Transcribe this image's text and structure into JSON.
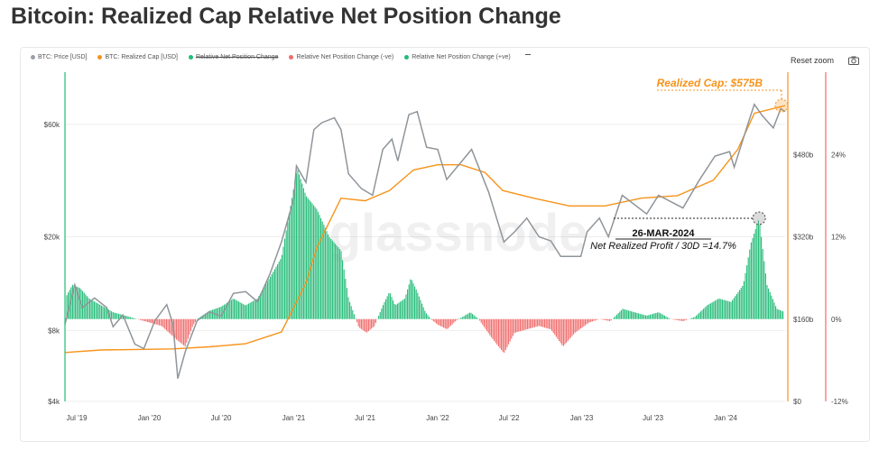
{
  "page": {
    "title": "Bitcoin: Realized Cap Relative Net Position Change"
  },
  "legend": [
    {
      "label": "BTC: Price [USD]",
      "color": "#9aa0a6",
      "struck": false
    },
    {
      "label": "BTC: Realized Cap [USD]",
      "color": "#f7931a",
      "struck": false
    },
    {
      "label": "Relative Net Position Change",
      "color": "#22bb77",
      "struck": true
    },
    {
      "label": "Relative Net Position Change (-ve)",
      "color": "#f06a6a",
      "struck": false
    },
    {
      "label": "Relative Net Position Change (+ve)",
      "color": "#22bb77",
      "struck": false
    }
  ],
  "toolbar": {
    "reset_zoom_label": "Reset zoom",
    "camera_icon": "camera-icon"
  },
  "watermark": "glassnode",
  "annotations": {
    "realized_cap": "Realized Cap: $575B",
    "date": "26-MAR-2024",
    "profit": "Net Realized Profit / 30D =14.7%"
  },
  "colors": {
    "price": "#8f959a",
    "realized_cap": "#f7931a",
    "positive": "#22bb77",
    "negative": "#f06a6a",
    "right_axis": "#f06a6a"
  },
  "chart_data": {
    "type": "line",
    "title": "Bitcoin: Realized Cap Relative Net Position Change",
    "x_tick_labels": [
      "Jul '19",
      "Jan '20",
      "Jul '20",
      "Jan '21",
      "Jul '21",
      "Jan '22",
      "Jul '22",
      "Jan '23",
      "Jul '23",
      "Jan '24"
    ],
    "x_tick_dates": [
      "2019-07-01",
      "2020-01-01",
      "2020-07-01",
      "2021-01-01",
      "2021-07-01",
      "2022-01-01",
      "2022-07-01",
      "2023-01-01",
      "2023-07-01",
      "2024-01-01"
    ],
    "x_range": [
      "2019-06-01",
      "2024-05-31"
    ],
    "left_axis": {
      "label": "Price",
      "scale": "log",
      "ticks": [
        "$4k",
        "$8k",
        "$20k",
        "$60k"
      ],
      "tick_values": [
        4000,
        8000,
        20000,
        60000
      ],
      "range": [
        4000,
        100000
      ]
    },
    "mid_axis": {
      "label": "Realized Cap",
      "scale": "linear",
      "ticks": [
        "$0",
        "$160b",
        "$320b",
        "$480b"
      ],
      "tick_values": [
        0,
        160,
        320,
        480
      ],
      "unit": "billion USD",
      "range": [
        0,
        640
      ]
    },
    "right_axis": {
      "label": "Relative Net Position Change",
      "scale": "linear",
      "ticks": [
        "-12%",
        "0%",
        "12%",
        "24%"
      ],
      "tick_values": [
        -12,
        0,
        12,
        24
      ],
      "unit": "%",
      "range": [
        -12,
        36
      ]
    },
    "grid": true,
    "legend_position": "top-left",
    "series": [
      {
        "name": "BTC: Price [USD]",
        "axis": "left",
        "points": [
          [
            "2019-06-01",
            8500
          ],
          [
            "2019-06-26",
            12500
          ],
          [
            "2019-07-15",
            10000
          ],
          [
            "2019-08-15",
            11000
          ],
          [
            "2019-09-15",
            10000
          ],
          [
            "2019-10-01",
            8300
          ],
          [
            "2019-10-26",
            9300
          ],
          [
            "2019-11-25",
            7000
          ],
          [
            "2019-12-18",
            6700
          ],
          [
            "2020-01-15",
            8800
          ],
          [
            "2020-02-14",
            10300
          ],
          [
            "2020-03-01",
            8500
          ],
          [
            "2020-03-13",
            5000
          ],
          [
            "2020-04-01",
            6500
          ],
          [
            "2020-05-01",
            8800
          ],
          [
            "2020-06-01",
            9600
          ],
          [
            "2020-07-01",
            9200
          ],
          [
            "2020-08-01",
            11500
          ],
          [
            "2020-09-01",
            11700
          ],
          [
            "2020-10-01",
            10600
          ],
          [
            "2020-11-01",
            13800
          ],
          [
            "2020-12-01",
            19000
          ],
          [
            "2021-01-01",
            29000
          ],
          [
            "2021-01-08",
            40000
          ],
          [
            "2021-02-01",
            34000
          ],
          [
            "2021-02-21",
            57000
          ],
          [
            "2021-03-13",
            61000
          ],
          [
            "2021-04-14",
            64000
          ],
          [
            "2021-05-01",
            57000
          ],
          [
            "2021-05-20",
            37000
          ],
          [
            "2021-06-22",
            32000
          ],
          [
            "2021-07-20",
            30000
          ],
          [
            "2021-08-15",
            47000
          ],
          [
            "2021-09-07",
            52000
          ],
          [
            "2021-09-22",
            42000
          ],
          [
            "2021-10-20",
            66000
          ],
          [
            "2021-11-10",
            68000
          ],
          [
            "2021-12-04",
            48000
          ],
          [
            "2022-01-01",
            47000
          ],
          [
            "2022-01-24",
            35000
          ],
          [
            "2022-03-28",
            47000
          ],
          [
            "2022-05-10",
            31000
          ],
          [
            "2022-06-18",
            19000
          ],
          [
            "2022-07-15",
            21000
          ],
          [
            "2022-08-15",
            24000
          ],
          [
            "2022-09-15",
            20000
          ],
          [
            "2022-10-15",
            19200
          ],
          [
            "2022-11-09",
            16500
          ],
          [
            "2022-12-30",
            16500
          ],
          [
            "2023-01-15",
            21000
          ],
          [
            "2023-02-15",
            24000
          ],
          [
            "2023-03-10",
            20000
          ],
          [
            "2023-04-14",
            30000
          ],
          [
            "2023-06-15",
            25000
          ],
          [
            "2023-07-15",
            30000
          ],
          [
            "2023-09-15",
            26500
          ],
          [
            "2023-10-25",
            34500
          ],
          [
            "2023-12-05",
            44000
          ],
          [
            "2024-01-11",
            46000
          ],
          [
            "2024-01-23",
            39500
          ],
          [
            "2024-02-29",
            62000
          ],
          [
            "2024-03-14",
            73000
          ],
          [
            "2024-04-01",
            66000
          ],
          [
            "2024-04-17",
            61500
          ],
          [
            "2024-05-01",
            58000
          ],
          [
            "2024-05-20",
            70000
          ],
          [
            "2024-05-31",
            68000
          ]
        ]
      },
      {
        "name": "BTC: Realized Cap [USD]",
        "axis": "mid",
        "unit": "billion USD",
        "points": [
          [
            "2019-06-01",
            95
          ],
          [
            "2019-09-01",
            100
          ],
          [
            "2019-12-01",
            101
          ],
          [
            "2020-03-01",
            102
          ],
          [
            "2020-06-01",
            106
          ],
          [
            "2020-09-01",
            112
          ],
          [
            "2020-12-01",
            135
          ],
          [
            "2021-02-01",
            230
          ],
          [
            "2021-03-01",
            300
          ],
          [
            "2021-05-01",
            395
          ],
          [
            "2021-07-01",
            390
          ],
          [
            "2021-09-01",
            410
          ],
          [
            "2021-11-01",
            450
          ],
          [
            "2022-01-01",
            460
          ],
          [
            "2022-03-01",
            460
          ],
          [
            "2022-05-01",
            445
          ],
          [
            "2022-06-15",
            410
          ],
          [
            "2022-09-01",
            395
          ],
          [
            "2022-12-01",
            380
          ],
          [
            "2023-03-01",
            380
          ],
          [
            "2023-06-01",
            395
          ],
          [
            "2023-09-01",
            400
          ],
          [
            "2023-12-01",
            430
          ],
          [
            "2024-02-01",
            490
          ],
          [
            "2024-03-14",
            560
          ],
          [
            "2024-05-31",
            575
          ]
        ]
      },
      {
        "name": "Relative Net Position Change",
        "axis": "right",
        "unit": "%",
        "points": [
          [
            "2019-06-01",
            3
          ],
          [
            "2019-06-20",
            5
          ],
          [
            "2019-07-10",
            4.5
          ],
          [
            "2019-08-01",
            3
          ],
          [
            "2019-09-01",
            2
          ],
          [
            "2019-10-01",
            1
          ],
          [
            "2019-11-01",
            0.5
          ],
          [
            "2019-12-01",
            0
          ],
          [
            "2020-01-01",
            -0.5
          ],
          [
            "2020-02-01",
            -1
          ],
          [
            "2020-03-10",
            -3
          ],
          [
            "2020-04-01",
            -4
          ],
          [
            "2020-04-20",
            -1
          ],
          [
            "2020-05-01",
            0
          ],
          [
            "2020-06-01",
            1.2
          ],
          [
            "2020-07-01",
            1.8
          ],
          [
            "2020-08-01",
            3
          ],
          [
            "2020-09-01",
            2
          ],
          [
            "2020-10-01",
            3
          ],
          [
            "2020-11-01",
            6
          ],
          [
            "2020-12-01",
            9
          ],
          [
            "2021-01-10",
            22
          ],
          [
            "2021-02-01",
            18
          ],
          [
            "2021-03-01",
            16
          ],
          [
            "2021-04-01",
            12
          ],
          [
            "2021-05-01",
            10
          ],
          [
            "2021-05-20",
            3
          ],
          [
            "2021-06-15",
            -1.2
          ],
          [
            "2021-07-05",
            -2
          ],
          [
            "2021-07-25",
            -1
          ],
          [
            "2021-08-15",
            2
          ],
          [
            "2021-09-01",
            4
          ],
          [
            "2021-09-15",
            2
          ],
          [
            "2021-10-10",
            3
          ],
          [
            "2021-10-25",
            6
          ],
          [
            "2021-11-10",
            4
          ],
          [
            "2021-12-01",
            1
          ],
          [
            "2021-12-15",
            0
          ],
          [
            "2022-01-01",
            -0.8
          ],
          [
            "2022-01-25",
            -1.5
          ],
          [
            "2022-02-15",
            -0.3
          ],
          [
            "2022-03-25",
            1
          ],
          [
            "2022-04-15",
            0
          ],
          [
            "2022-05-15",
            -2.5
          ],
          [
            "2022-06-18",
            -5
          ],
          [
            "2022-07-15",
            -2
          ],
          [
            "2022-08-15",
            -1.5
          ],
          [
            "2022-09-15",
            -1
          ],
          [
            "2022-10-15",
            -1.5
          ],
          [
            "2022-11-15",
            -4
          ],
          [
            "2022-12-15",
            -2
          ],
          [
            "2023-01-20",
            -0.5
          ],
          [
            "2023-02-15",
            0
          ],
          [
            "2023-03-15",
            -0.3
          ],
          [
            "2023-04-15",
            1.5
          ],
          [
            "2023-05-15",
            1
          ],
          [
            "2023-06-15",
            0.5
          ],
          [
            "2023-07-15",
            1
          ],
          [
            "2023-08-15",
            0
          ],
          [
            "2023-09-15",
            -0.3
          ],
          [
            "2023-10-15",
            0.3
          ],
          [
            "2023-11-15",
            2
          ],
          [
            "2023-12-15",
            3
          ],
          [
            "2024-01-15",
            2.5
          ],
          [
            "2024-02-15",
            5
          ],
          [
            "2024-03-05",
            11
          ],
          [
            "2024-03-26",
            14.7
          ],
          [
            "2024-04-15",
            5
          ],
          [
            "2024-05-10",
            1.5
          ],
          [
            "2024-05-31",
            1
          ]
        ]
      }
    ]
  }
}
